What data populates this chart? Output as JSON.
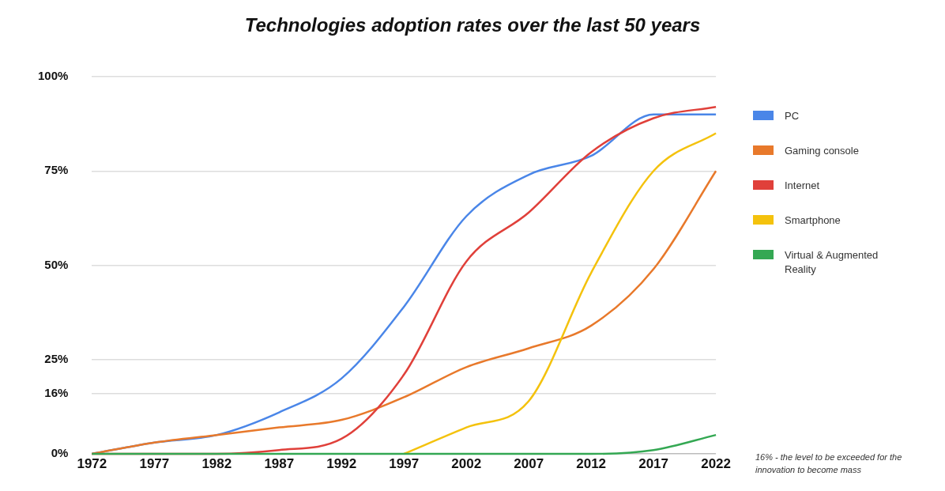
{
  "chart_data": {
    "type": "line",
    "title": "Technologies adoption rates over the last 50 years",
    "x": [
      1972,
      1977,
      1982,
      1987,
      1992,
      1997,
      2002,
      2007,
      2012,
      2017,
      2022
    ],
    "series": [
      {
        "name": "PC",
        "color": "#4a86e8",
        "values": [
          0,
          3,
          5,
          11,
          20,
          39,
          63,
          74,
          79,
          90,
          90
        ]
      },
      {
        "name": "Gaming console",
        "color": "#e8792b",
        "values": [
          0,
          3,
          5,
          7,
          9,
          15,
          23,
          28,
          34,
          49,
          75
        ]
      },
      {
        "name": "Internet",
        "color": "#e0403a",
        "values": [
          0,
          0,
          0,
          1,
          4,
          21,
          51,
          64,
          80,
          89,
          92
        ]
      },
      {
        "name": "Smartphone",
        "color": "#f4c20d",
        "values": [
          null,
          null,
          null,
          null,
          null,
          0,
          7,
          14,
          48,
          75,
          85
        ]
      },
      {
        "name": "Virtual & Augmented Reality",
        "color": "#34a853",
        "values": [
          0,
          0,
          0,
          0,
          0,
          0,
          0,
          0,
          0,
          1,
          5
        ]
      }
    ],
    "xlim": [
      1972,
      2022
    ],
    "xticks": [
      1972,
      1977,
      1982,
      1987,
      1992,
      1997,
      2002,
      2007,
      2012,
      2017,
      2022
    ],
    "ylim": [
      0,
      100
    ],
    "yticks": [
      {
        "value": 0,
        "label": "0%"
      },
      {
        "value": 16,
        "label": "16%"
      },
      {
        "value": 25,
        "label": "25%"
      },
      {
        "value": 50,
        "label": "50%"
      },
      {
        "value": 75,
        "label": "75%"
      },
      {
        "value": 100,
        "label": "100%"
      }
    ],
    "grid": "y",
    "legend": "right",
    "marker": "none",
    "line_style": "solid",
    "annotations": [
      "16% - the level to be exceeded for the innovation to become mass"
    ]
  }
}
